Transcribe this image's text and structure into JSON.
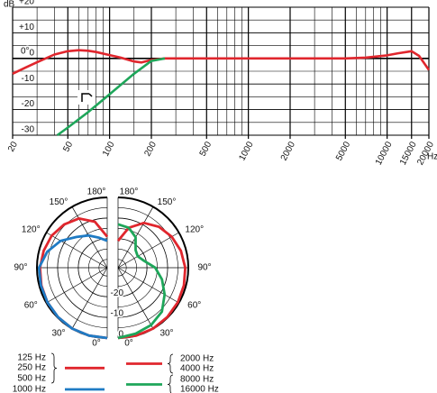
{
  "chart_data": [
    {
      "type": "line",
      "y_label": "dB",
      "x_label": "Hz",
      "annotation": "0°",
      "xscale": "log",
      "xlim": [
        20,
        20000
      ],
      "ylim": [
        -30,
        20
      ],
      "xticks": [
        20,
        50,
        100,
        200,
        500,
        1000,
        2000,
        5000,
        10000,
        15000,
        20000
      ],
      "xgrid": [
        30,
        40,
        60,
        70,
        80,
        90,
        150,
        300,
        400,
        600,
        700,
        800,
        900,
        3000,
        4000,
        6000,
        7000,
        8000,
        9000
      ],
      "yticks": [
        {
          "value": 20,
          "label": "+20"
        },
        {
          "value": 10,
          "label": "+10"
        },
        0,
        -10,
        -20,
        -30
      ],
      "ygrid": [
        15,
        5,
        -5,
        -15,
        -25
      ],
      "grid": true,
      "series": [
        {
          "color": "#e0262d",
          "x": [
            20,
            25,
            30,
            40,
            50,
            60,
            70,
            80,
            100,
            120,
            150,
            170,
            200,
            250,
            300,
            500,
            1000,
            2000,
            3000,
            5000,
            7000,
            10000,
            12000,
            15000,
            17000,
            20000
          ],
          "values": [
            -6,
            -3.5,
            -1.5,
            1.5,
            2.8,
            3.2,
            3,
            2.5,
            1.3,
            0.3,
            -1.2,
            -1.6,
            -0.6,
            0,
            0,
            0,
            0,
            0,
            0,
            0,
            0.3,
            1.2,
            2,
            2.8,
            1,
            -4.5
          ]
        },
        {
          "color": "#1ea65a",
          "x": [
            42,
            50,
            70,
            100,
            150,
            200,
            250
          ],
          "values": [
            -30,
            -27,
            -21,
            -14,
            -6,
            -1,
            0
          ]
        }
      ]
    },
    {
      "type": "polar",
      "rlim": [
        -34,
        0
      ],
      "rticks": [
        0,
        -10,
        -20
      ],
      "rgrid": [
        -30,
        -25,
        -15,
        -5
      ],
      "thetaticks": [
        {
          "value": 0,
          "label": "0°"
        },
        {
          "value": 30,
          "label": "30°"
        },
        {
          "value": 60,
          "label": "60°"
        },
        {
          "value": 90,
          "label": "90°"
        },
        {
          "value": 120,
          "label": "120°"
        },
        {
          "value": 150,
          "label": "150°"
        },
        {
          "value": 180,
          "label": "180°"
        }
      ],
      "theta": [
        0,
        15,
        30,
        45,
        60,
        75,
        90,
        105,
        120,
        135,
        150,
        165,
        180
      ],
      "series": [
        {
          "name": [
            "125 Hz",
            "250 Hz",
            "500 Hz"
          ],
          "color": "#e0262d",
          "side": "left",
          "values": [
            0,
            0,
            0,
            -0.3,
            -0.6,
            -1,
            -1.5,
            -2.2,
            -3,
            -4.5,
            -6.5,
            -11,
            -19
          ]
        },
        {
          "name": [
            "1000 Hz"
          ],
          "color": "#1f7bc4",
          "side": "left",
          "values": [
            0,
            0,
            0,
            -0.3,
            -0.6,
            -0.8,
            -1,
            -4,
            -8,
            -13,
            -16,
            -19,
            -21
          ]
        },
        {
          "name": [
            "2000 Hz",
            "4000 Hz"
          ],
          "color": "#e0262d",
          "side": "right",
          "values": [
            0,
            0,
            0,
            -0.3,
            -0.6,
            -1,
            -1.5,
            -2.5,
            -4,
            -6,
            -9,
            -14,
            -21
          ]
        },
        {
          "name": [
            "8000 Hz",
            "16000 Hz"
          ],
          "color": "#1ea65a",
          "side": "right",
          "values": [
            0,
            -1,
            -2,
            -4,
            -8,
            -12,
            -16,
            -21,
            -23,
            -22,
            -17,
            -14,
            -13
          ]
        }
      ]
    }
  ]
}
